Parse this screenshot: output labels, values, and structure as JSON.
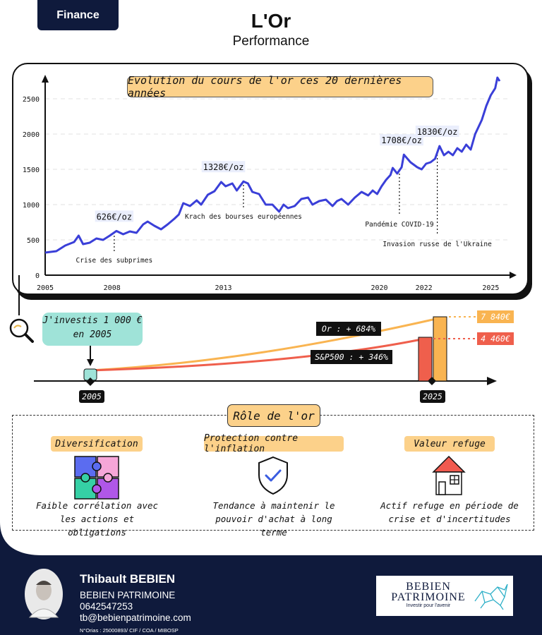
{
  "header": {
    "tag": "Finance",
    "title": "L'Or",
    "subtitle": "Performance"
  },
  "chart_data": {
    "type": "line",
    "title": "Evolution du cours de l'or ces 20 dernières années",
    "x_ticks": [
      "2005",
      "2008",
      "2013",
      "2020",
      "2022",
      "2025"
    ],
    "y_ticks": [
      "0",
      "500",
      "1000",
      "1500",
      "2000",
      "2500"
    ],
    "ylim": [
      0,
      2750
    ],
    "grid": true,
    "series": [
      {
        "color": "#3a3fd8",
        "points": [
          [
            2005.0,
            320
          ],
          [
            2005.5,
            340
          ],
          [
            2005.9,
            420
          ],
          [
            2006.3,
            470
          ],
          [
            2006.5,
            560
          ],
          [
            2006.7,
            440
          ],
          [
            2007.0,
            460
          ],
          [
            2007.3,
            520
          ],
          [
            2007.6,
            500
          ],
          [
            2007.9,
            560
          ],
          [
            2008.2,
            626
          ],
          [
            2008.5,
            580
          ],
          [
            2008.8,
            620
          ],
          [
            2009.1,
            600
          ],
          [
            2009.4,
            720
          ],
          [
            2009.6,
            760
          ],
          [
            2009.9,
            700
          ],
          [
            2010.2,
            650
          ],
          [
            2010.5,
            720
          ],
          [
            2010.8,
            800
          ],
          [
            2011.0,
            860
          ],
          [
            2011.2,
            1020
          ],
          [
            2011.5,
            980
          ],
          [
            2011.8,
            1060
          ],
          [
            2012.0,
            1000
          ],
          [
            2012.3,
            1140
          ],
          [
            2012.6,
            1190
          ],
          [
            2012.9,
            1320
          ],
          [
            2013.1,
            1260
          ],
          [
            2013.4,
            1300
          ],
          [
            2013.6,
            1200
          ],
          [
            2013.9,
            1328
          ],
          [
            2014.1,
            1300
          ],
          [
            2014.3,
            1180
          ],
          [
            2014.6,
            1150
          ],
          [
            2014.9,
            1000
          ],
          [
            2015.2,
            1000
          ],
          [
            2015.5,
            900
          ],
          [
            2015.7,
            1000
          ],
          [
            2015.9,
            950
          ],
          [
            2016.2,
            980
          ],
          [
            2016.5,
            1080
          ],
          [
            2016.8,
            1100
          ],
          [
            2017.0,
            1000
          ],
          [
            2017.3,
            1050
          ],
          [
            2017.6,
            1070
          ],
          [
            2017.9,
            980
          ],
          [
            2018.1,
            1050
          ],
          [
            2018.3,
            1080
          ],
          [
            2018.6,
            1000
          ],
          [
            2018.9,
            1100
          ],
          [
            2019.2,
            1180
          ],
          [
            2019.5,
            1130
          ],
          [
            2019.7,
            1200
          ],
          [
            2019.9,
            1150
          ],
          [
            2020.1,
            1260
          ],
          [
            2020.3,
            1350
          ],
          [
            2020.5,
            1420
          ],
          [
            2020.6,
            1520
          ],
          [
            2020.8,
            1440
          ],
          [
            2021.0,
            1530
          ],
          [
            2021.1,
            1708
          ],
          [
            2021.4,
            1600
          ],
          [
            2021.7,
            1530
          ],
          [
            2021.9,
            1500
          ],
          [
            2022.1,
            1580
          ],
          [
            2022.3,
            1600
          ],
          [
            2022.5,
            1650
          ],
          [
            2022.7,
            1830
          ],
          [
            2022.9,
            1700
          ],
          [
            2023.1,
            1750
          ],
          [
            2023.3,
            1700
          ],
          [
            2023.5,
            1800
          ],
          [
            2023.7,
            1750
          ],
          [
            2023.9,
            1850
          ],
          [
            2024.1,
            1780
          ],
          [
            2024.3,
            2000
          ],
          [
            2024.6,
            2200
          ],
          [
            2024.8,
            2400
          ],
          [
            2025.0,
            2550
          ],
          [
            2025.2,
            2650
          ],
          [
            2025.3,
            2800
          ],
          [
            2025.4,
            2750
          ]
        ]
      }
    ],
    "price_labels": [
      {
        "text": "626€/oz",
        "x": 2008.1,
        "y": 626
      },
      {
        "text": "1328€/oz",
        "x": 2013.0,
        "y": 1328
      },
      {
        "text": "1708€/oz",
        "x": 2021.0,
        "y": 1708
      },
      {
        "text": "1830€/oz",
        "x": 2022.6,
        "y": 1830
      }
    ],
    "events": [
      {
        "text": "Crise des subprimes",
        "x": 2008.1,
        "y_top": 560,
        "y_bottom": 330
      },
      {
        "text": "Krach des bourses européennes",
        "x": 2013.9,
        "y_top": 1280,
        "y_bottom": 950
      },
      {
        "text": "Pandémie COVID-19",
        "x": 2020.9,
        "y_top": 1440,
        "y_bottom": 840
      },
      {
        "text": "Invasion russe de l'Ukraine",
        "x": 2022.6,
        "y_top": 1760,
        "y_bottom": 560
      }
    ]
  },
  "investment": {
    "callout": [
      "J'investis 1 000 €",
      "en 2005"
    ],
    "start_year": "2005",
    "end_year": "2025",
    "gold_label": "Or : + 684%",
    "sp_label": "S&P500 : + 346%",
    "gold_value": "7 840€",
    "sp_value": "4 460€",
    "gold_color": "#f9b451",
    "sp_color": "#ef5f4c"
  },
  "role": {
    "title": "Rôle de l'or",
    "items": [
      {
        "label": "Diversification",
        "icon": "puzzle-icon",
        "desc": [
          "Faible corrélation avec",
          "les actions et obligations"
        ]
      },
      {
        "label": "Protection contre l'inflation",
        "icon": "shield-check-icon",
        "desc": [
          "Tendance à maintenir le",
          "pouvoir d'achat à long terme"
        ]
      },
      {
        "label": "Valeur refuge",
        "icon": "house-icon",
        "desc": [
          "Actif refuge en période de",
          "crise et d'incertitudes"
        ]
      }
    ]
  },
  "footer": {
    "name": "Thibault BEBIEN",
    "company": "BEBIEN PATRIMOINE",
    "phone": "0642547253",
    "email": "tb@bebienpatrimoine.com",
    "legal": "N°Orias : 25000893/ CIF / COA / MIBOSP",
    "logo_line1": "BEBIEN",
    "logo_line2": "PATRIMOINE",
    "logo_tagline": "Investir pour l'avenir"
  }
}
